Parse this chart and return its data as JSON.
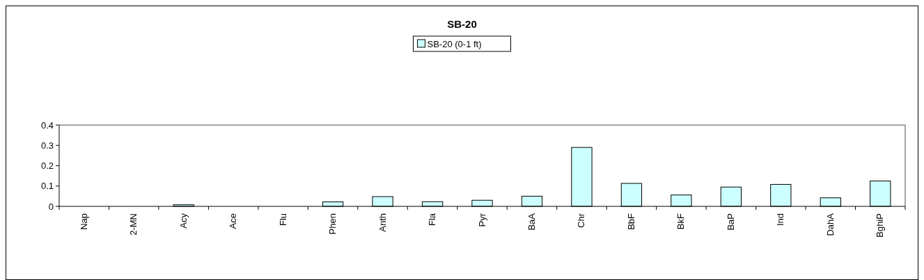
{
  "chart_data": {
    "type": "bar",
    "title": "SB-20",
    "categories": [
      "Nap",
      "2-MN",
      "Acy",
      "Ace",
      "Flu",
      "Phen",
      "Anth",
      "Fla",
      "Pyr",
      "BaA",
      "Chr",
      "BbF",
      "BkF",
      "BaP",
      "Ind",
      "DahA",
      "BghiP"
    ],
    "series": [
      {
        "name": "SB-20 (0-1 ft)",
        "color": "#ccffff",
        "values": [
          0,
          0,
          0.008,
          0,
          0,
          0.022,
          0.048,
          0.023,
          0.03,
          0.05,
          0.29,
          0.113,
          0.056,
          0.095,
          0.108,
          0.042,
          0.125
        ]
      }
    ],
    "ylim": [
      0,
      0.4
    ],
    "yticks": [
      0,
      0.1,
      0.2,
      0.3,
      0.4
    ],
    "grid": false,
    "legend": "top"
  }
}
